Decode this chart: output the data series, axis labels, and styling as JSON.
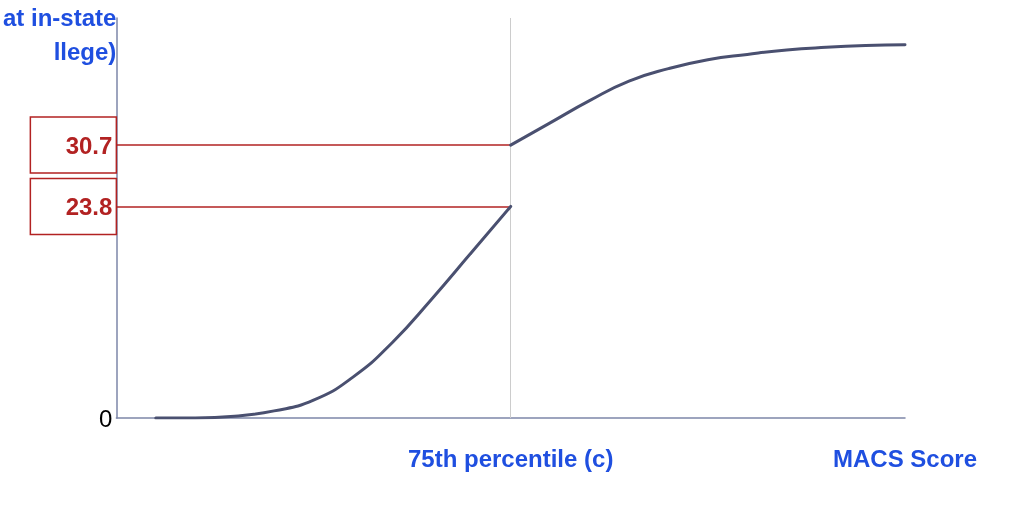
{
  "chart_data": {
    "type": "line",
    "ylabel": "at in-state\nllege)",
    "categories": [
      null,
      null,
      null,
      null,
      null,
      null,
      null,
      null,
      null,
      null,
      "75th percentile (c)",
      null,
      null,
      null,
      null,
      null,
      null,
      null,
      null,
      null,
      "MACS Score"
    ],
    "series": [
      {
        "color": "#4a5070",
        "values": [
          null,
          0,
          0,
          0.2,
          0.8,
          2,
          4.6,
          8.5,
          13.4,
          18.6,
          23.8,
          null,
          null,
          null,
          null,
          null,
          null,
          null,
          null,
          null,
          null
        ]
      },
      {
        "color": "#4a5070",
        "values": [
          null,
          null,
          null,
          null,
          null,
          null,
          null,
          null,
          null,
          null,
          30.7,
          33.2,
          35.7,
          37.9,
          39.3,
          40.3,
          40.9,
          41.4,
          41.7,
          41.9,
          42.0
        ]
      }
    ],
    "ylim": [
      0,
      45
    ],
    "yticks": [
      0,
      23.8,
      30.7
    ],
    "ref_lines": [
      {
        "axis": "y",
        "value": 30.7,
        "color": "#b22222"
      },
      {
        "axis": "y",
        "value": 23.8,
        "color": "#b22222"
      },
      {
        "axis": "x",
        "value": "75th percentile (c)",
        "color": "#cccccc"
      }
    ],
    "grid": false,
    "marker": "none",
    "line_style": "solid"
  }
}
